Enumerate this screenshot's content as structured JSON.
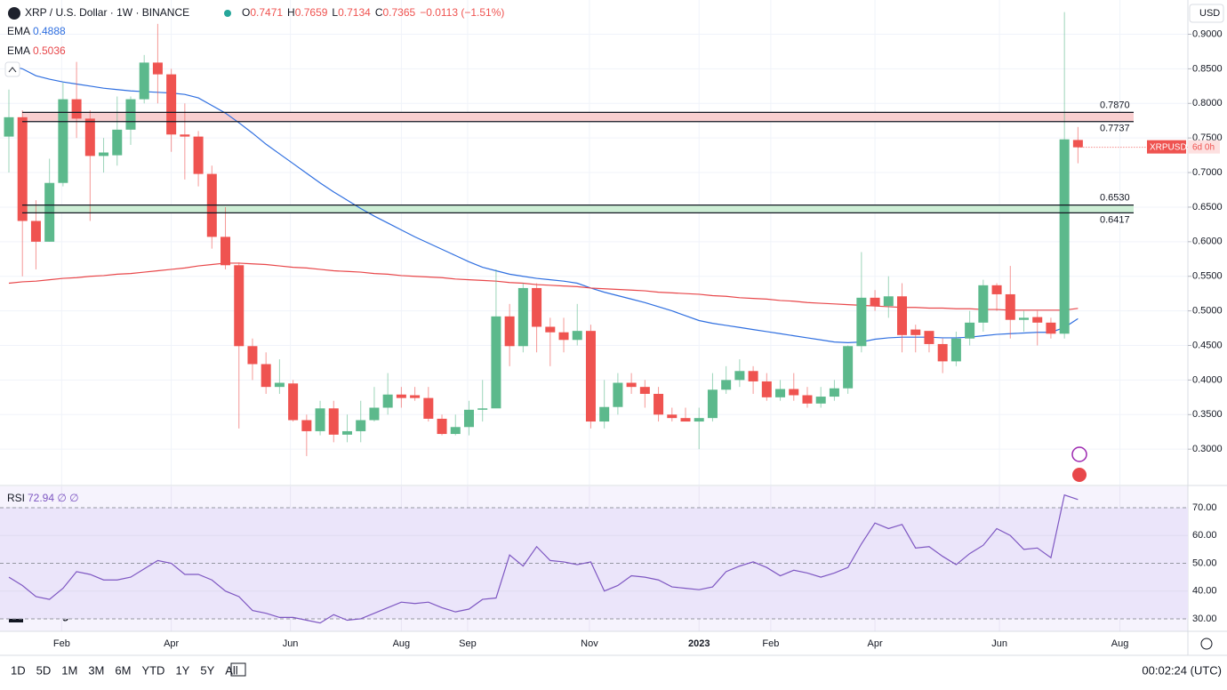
{
  "chart_data": {
    "type": "candlestick",
    "title": "XRP / U.S. Dollar · 1W · BINANCE",
    "legend": {
      "labels": [
        "O",
        "H",
        "L",
        "C"
      ],
      "values": [
        0.7471,
        0.7659,
        0.7134,
        0.7365
      ],
      "change": "−0.0113 (−1.51%)"
    },
    "currency": "USD",
    "symbol_label": "XRPUSD",
    "countdown": "6d 0h",
    "ylim": [
      0.2475,
      0.9495
    ],
    "yticks": [
      {
        "value": 0.9,
        "label": "0.9000"
      },
      {
        "value": 0.85,
        "label": "0.8500"
      },
      {
        "value": 0.8,
        "label": "0.8000"
      },
      {
        "value": 0.75,
        "label": "0.7500"
      },
      {
        "value": 0.7,
        "label": "0.7000"
      },
      {
        "value": 0.65,
        "label": "0.6500"
      },
      {
        "value": 0.6,
        "label": "0.6000"
      },
      {
        "value": 0.55,
        "label": "0.5500"
      },
      {
        "value": 0.5,
        "label": "0.5000"
      },
      {
        "value": 0.45,
        "label": "0.4500"
      },
      {
        "value": 0.4,
        "label": "0.4000"
      },
      {
        "value": 0.35,
        "label": "0.3500"
      },
      {
        "value": 0.3,
        "label": "0.3000"
      }
    ],
    "xticks": [
      "Feb",
      "Apr",
      "Jun",
      "Aug",
      "Sep",
      "Nov",
      "2023",
      "Feb",
      "Apr",
      "Jun",
      "Aug"
    ],
    "grid": true,
    "up_color": "#5cb98c",
    "down_color": "#ef5350",
    "open": [
      0.752,
      0.78,
      0.63,
      0.6,
      0.685,
      0.806,
      0.778,
      0.724,
      0.725,
      0.762,
      0.806,
      0.859,
      0.842,
      0.755,
      0.752,
      0.698,
      0.607,
      0.566,
      0.449,
      0.423,
      0.39,
      0.395,
      0.342,
      0.326,
      0.359,
      0.321,
      0.326,
      0.342,
      0.36,
      0.379,
      0.378,
      0.374,
      0.344,
      0.322,
      0.332,
      0.357,
      0.359,
      0.492,
      0.449,
      0.533,
      0.477,
      0.469,
      0.458,
      0.471,
      0.34,
      0.361,
      0.396,
      0.39,
      0.38,
      0.35,
      0.345,
      0.34,
      0.345,
      0.386,
      0.4,
      0.413,
      0.398,
      0.375,
      0.387,
      0.378,
      0.366,
      0.376,
      0.388,
      0.449,
      0.519,
      0.507,
      0.521,
      0.473,
      0.471,
      0.452,
      0.427,
      0.46,
      0.483,
      0.537,
      0.524,
      0.487,
      0.491,
      0.483,
      0.467,
      0.7471
    ],
    "high": [
      0.82,
      0.79,
      0.66,
      0.72,
      0.83,
      0.86,
      0.79,
      0.75,
      0.81,
      0.81,
      0.87,
      0.915,
      0.85,
      0.8,
      0.76,
      0.71,
      0.65,
      0.57,
      0.46,
      0.44,
      0.43,
      0.4,
      0.35,
      0.37,
      0.37,
      0.35,
      0.37,
      0.39,
      0.41,
      0.39,
      0.39,
      0.39,
      0.35,
      0.35,
      0.37,
      0.4,
      0.56,
      0.51,
      0.54,
      0.54,
      0.49,
      0.49,
      0.51,
      0.48,
      0.4,
      0.41,
      0.41,
      0.4,
      0.39,
      0.36,
      0.36,
      0.36,
      0.41,
      0.42,
      0.43,
      0.42,
      0.41,
      0.4,
      0.41,
      0.39,
      0.39,
      0.4,
      0.45,
      0.585,
      0.53,
      0.55,
      0.54,
      0.48,
      0.47,
      0.46,
      0.47,
      0.5,
      0.545,
      0.54,
      0.565,
      0.5,
      0.5,
      0.49,
      0.932,
      0.7659
    ],
    "low": [
      0.7,
      0.55,
      0.56,
      0.6,
      0.68,
      0.75,
      0.63,
      0.7,
      0.71,
      0.74,
      0.8,
      0.8,
      0.73,
      0.69,
      0.68,
      0.59,
      0.56,
      0.33,
      0.4,
      0.38,
      0.38,
      0.34,
      0.29,
      0.32,
      0.31,
      0.31,
      0.31,
      0.34,
      0.35,
      0.36,
      0.37,
      0.34,
      0.32,
      0.32,
      0.32,
      0.34,
      0.36,
      0.42,
      0.44,
      0.44,
      0.42,
      0.44,
      0.45,
      0.33,
      0.33,
      0.35,
      0.38,
      0.36,
      0.34,
      0.34,
      0.34,
      0.3,
      0.34,
      0.38,
      0.39,
      0.38,
      0.37,
      0.37,
      0.37,
      0.36,
      0.36,
      0.37,
      0.38,
      0.44,
      0.5,
      0.49,
      0.44,
      0.44,
      0.44,
      0.41,
      0.42,
      0.45,
      0.47,
      0.5,
      0.46,
      0.47,
      0.45,
      0.46,
      0.46,
      0.7134
    ],
    "close": [
      0.78,
      0.63,
      0.6,
      0.685,
      0.806,
      0.778,
      0.724,
      0.729,
      0.762,
      0.806,
      0.859,
      0.842,
      0.755,
      0.752,
      0.698,
      0.607,
      0.566,
      0.449,
      0.423,
      0.39,
      0.396,
      0.342,
      0.326,
      0.359,
      0.321,
      0.326,
      0.342,
      0.36,
      0.379,
      0.374,
      0.374,
      0.344,
      0.322,
      0.332,
      0.357,
      0.359,
      0.492,
      0.449,
      0.533,
      0.477,
      0.469,
      0.458,
      0.471,
      0.34,
      0.361,
      0.396,
      0.39,
      0.38,
      0.35,
      0.345,
      0.34,
      0.345,
      0.386,
      0.4,
      0.413,
      0.398,
      0.375,
      0.387,
      0.378,
      0.366,
      0.376,
      0.388,
      0.449,
      0.519,
      0.507,
      0.521,
      0.465,
      0.465,
      0.452,
      0.427,
      0.46,
      0.483,
      0.537,
      0.524,
      0.487,
      0.49,
      0.483,
      0.467,
      0.748,
      0.7365
    ],
    "series": [
      {
        "name": "EMA",
        "value_label": "0.4888",
        "color": "#2f6fe0",
        "values": [
          0.855,
          0.85,
          0.84,
          0.835,
          0.831,
          0.828,
          0.825,
          0.822,
          0.82,
          0.818,
          0.817,
          0.816,
          0.815,
          0.813,
          0.808,
          0.797,
          0.786,
          0.772,
          0.757,
          0.741,
          0.727,
          0.713,
          0.699,
          0.685,
          0.672,
          0.66,
          0.648,
          0.637,
          0.627,
          0.617,
          0.607,
          0.598,
          0.589,
          0.58,
          0.571,
          0.563,
          0.558,
          0.553,
          0.55,
          0.547,
          0.545,
          0.543,
          0.54,
          0.533,
          0.527,
          0.522,
          0.517,
          0.512,
          0.506,
          0.5,
          0.493,
          0.486,
          0.482,
          0.479,
          0.476,
          0.473,
          0.47,
          0.467,
          0.464,
          0.461,
          0.458,
          0.455,
          0.454,
          0.455,
          0.459,
          0.461,
          0.462,
          0.462,
          0.462,
          0.461,
          0.461,
          0.462,
          0.464,
          0.466,
          0.467,
          0.468,
          0.469,
          0.469,
          0.476,
          0.4888
        ]
      },
      {
        "name": "EMA",
        "value_label": "0.5036",
        "color": "#e8474a",
        "values": [
          0.54,
          0.542,
          0.543,
          0.545,
          0.547,
          0.548,
          0.55,
          0.551,
          0.553,
          0.554,
          0.556,
          0.558,
          0.56,
          0.562,
          0.565,
          0.567,
          0.569,
          0.569,
          0.568,
          0.567,
          0.565,
          0.563,
          0.562,
          0.56,
          0.558,
          0.557,
          0.556,
          0.554,
          0.553,
          0.551,
          0.55,
          0.549,
          0.548,
          0.546,
          0.545,
          0.544,
          0.543,
          0.541,
          0.54,
          0.538,
          0.537,
          0.536,
          0.535,
          0.533,
          0.532,
          0.531,
          0.53,
          0.529,
          0.527,
          0.526,
          0.525,
          0.524,
          0.522,
          0.521,
          0.519,
          0.518,
          0.517,
          0.515,
          0.514,
          0.512,
          0.511,
          0.51,
          0.509,
          0.508,
          0.507,
          0.506,
          0.505,
          0.505,
          0.504,
          0.504,
          0.503,
          0.503,
          0.502,
          0.502,
          0.501,
          0.501,
          0.501,
          0.501,
          0.501,
          0.5036
        ]
      }
    ],
    "levels": [
      {
        "value": 0.787,
        "label": "0.7870"
      },
      {
        "value": 0.7737,
        "label": "0.7737"
      },
      {
        "value": 0.653,
        "label": "0.6530"
      },
      {
        "value": 0.6417,
        "label": "0.6417"
      }
    ],
    "zones": [
      {
        "color": "#f9cfd0"
      },
      {
        "color": "#cdeed5"
      }
    ],
    "rsi": {
      "name": "RSI",
      "value_label": "72.94 ∅ ∅",
      "color": "#7e57c2",
      "values": [
        45,
        42,
        38,
        37,
        41,
        47,
        46,
        44,
        44,
        45,
        48,
        51,
        50,
        46,
        46,
        44,
        40,
        38,
        33,
        32,
        30.5,
        30.5,
        29.5,
        28.5,
        31.5,
        29.5,
        30,
        32,
        34,
        36,
        35.5,
        36,
        34,
        32.5,
        33.5,
        37,
        37.5,
        53,
        49,
        56,
        51,
        50.5,
        49.5,
        50.5,
        40,
        42,
        45.5,
        45,
        44,
        41.5,
        41,
        40.5,
        41.5,
        47,
        49,
        50.5,
        48.5,
        45.5,
        47.5,
        46.5,
        45,
        46.5,
        48.5,
        57,
        64.5,
        62.5,
        64,
        55.5,
        56,
        52.5,
        49.5,
        53.5,
        56.5,
        62.5,
        60,
        55,
        55.5,
        52,
        74.6,
        72.94
      ],
      "ylim": [
        25.5,
        77.7
      ],
      "yticks": [
        {
          "value": 70,
          "label": "70.00"
        },
        {
          "value": 60,
          "label": "60.00"
        },
        {
          "value": 50,
          "label": "50.00"
        },
        {
          "value": 40,
          "label": "40.00"
        },
        {
          "value": 30,
          "label": "30.00"
        }
      ]
    }
  },
  "branding": "TradingView",
  "toolbar": {
    "ranges": [
      "1D",
      "5D",
      "1M",
      "3M",
      "6M",
      "YTD",
      "1Y",
      "5Y",
      "All"
    ],
    "clock": "00:02:24 (UTC)"
  }
}
